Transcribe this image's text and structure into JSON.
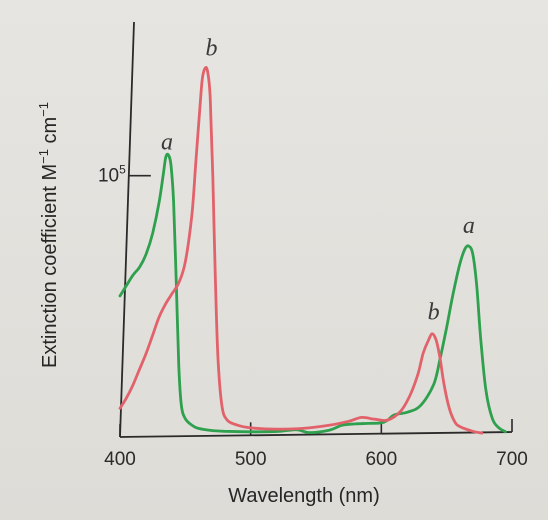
{
  "chart_data": {
    "type": "line",
    "title": "",
    "xlabel": "Wavelength (nm)",
    "ylabel": "Extinction coefficient M",
    "ylabel_sup1": "−1",
    "ylabel_mid": " cm",
    "ylabel_sup2": "−1",
    "xlim": [
      400,
      700
    ],
    "ylim": [
      0,
      150000
    ],
    "x_ticks": [
      {
        "value": 400,
        "label": "400"
      },
      {
        "value": 500,
        "label": "500"
      },
      {
        "value": 600,
        "label": "600"
      },
      {
        "value": 700,
        "label": "700"
      }
    ],
    "y_ticks": [
      {
        "value": 100000,
        "base": "10",
        "exp": "5"
      }
    ],
    "series": [
      {
        "name": "a",
        "color": "#2fa04e",
        "label_at": [
          436,
          110000
        ],
        "points": [
          [
            400,
            54000
          ],
          [
            405,
            58000
          ],
          [
            410,
            62000
          ],
          [
            415,
            65000
          ],
          [
            420,
            70000
          ],
          [
            425,
            78000
          ],
          [
            430,
            90000
          ],
          [
            433,
            100000
          ],
          [
            435,
            107000
          ],
          [
            437,
            108000
          ],
          [
            439,
            104000
          ],
          [
            441,
            90000
          ],
          [
            443,
            60000
          ],
          [
            445,
            27000
          ],
          [
            447,
            12000
          ],
          [
            450,
            7000
          ],
          [
            455,
            4500
          ],
          [
            460,
            3300
          ],
          [
            470,
            2500
          ],
          [
            480,
            2200
          ],
          [
            500,
            2000
          ],
          [
            520,
            2100
          ],
          [
            535,
            2800
          ],
          [
            545,
            1700
          ],
          [
            560,
            2600
          ],
          [
            570,
            4500
          ],
          [
            580,
            5000
          ],
          [
            590,
            5200
          ],
          [
            600,
            5400
          ],
          [
            605,
            6500
          ],
          [
            610,
            8500
          ],
          [
            620,
            9500
          ],
          [
            630,
            12000
          ],
          [
            640,
            20000
          ],
          [
            645,
            30000
          ],
          [
            650,
            42000
          ],
          [
            655,
            55000
          ],
          [
            660,
            66000
          ],
          [
            664,
            72000
          ],
          [
            667,
            73000
          ],
          [
            670,
            70000
          ],
          [
            673,
            58000
          ],
          [
            676,
            38000
          ],
          [
            680,
            18000
          ],
          [
            685,
            7000
          ],
          [
            690,
            3500
          ],
          [
            695,
            2000
          ]
        ]
      },
      {
        "name": "b",
        "color": "#e2626b",
        "label_at": [
          470,
          146000
        ],
        "points": [
          [
            400,
            11000
          ],
          [
            405,
            15000
          ],
          [
            410,
            20000
          ],
          [
            415,
            26000
          ],
          [
            420,
            32000
          ],
          [
            425,
            39000
          ],
          [
            430,
            46000
          ],
          [
            435,
            51000
          ],
          [
            440,
            55000
          ],
          [
            445,
            59000
          ],
          [
            450,
            67000
          ],
          [
            455,
            85000
          ],
          [
            458,
            105000
          ],
          [
            461,
            125000
          ],
          [
            463,
            137000
          ],
          [
            465,
            141000
          ],
          [
            467,
            140000
          ],
          [
            469,
            130000
          ],
          [
            471,
            100000
          ],
          [
            473,
            60000
          ],
          [
            475,
            30000
          ],
          [
            478,
            12000
          ],
          [
            482,
            6500
          ],
          [
            490,
            4500
          ],
          [
            500,
            3500
          ],
          [
            520,
            3000
          ],
          [
            540,
            3300
          ],
          [
            560,
            4500
          ],
          [
            575,
            6000
          ],
          [
            585,
            7500
          ],
          [
            595,
            6800
          ],
          [
            605,
            6500
          ],
          [
            615,
            10000
          ],
          [
            622,
            16000
          ],
          [
            628,
            24000
          ],
          [
            632,
            32000
          ],
          [
            636,
            37000
          ],
          [
            639,
            39500
          ],
          [
            642,
            37000
          ],
          [
            645,
            30000
          ],
          [
            648,
            20000
          ],
          [
            652,
            11000
          ],
          [
            656,
            6000
          ],
          [
            660,
            4000
          ],
          [
            670,
            2200
          ],
          [
            677,
            1500
          ]
        ]
      }
    ],
    "grid": false,
    "legend": "none"
  }
}
